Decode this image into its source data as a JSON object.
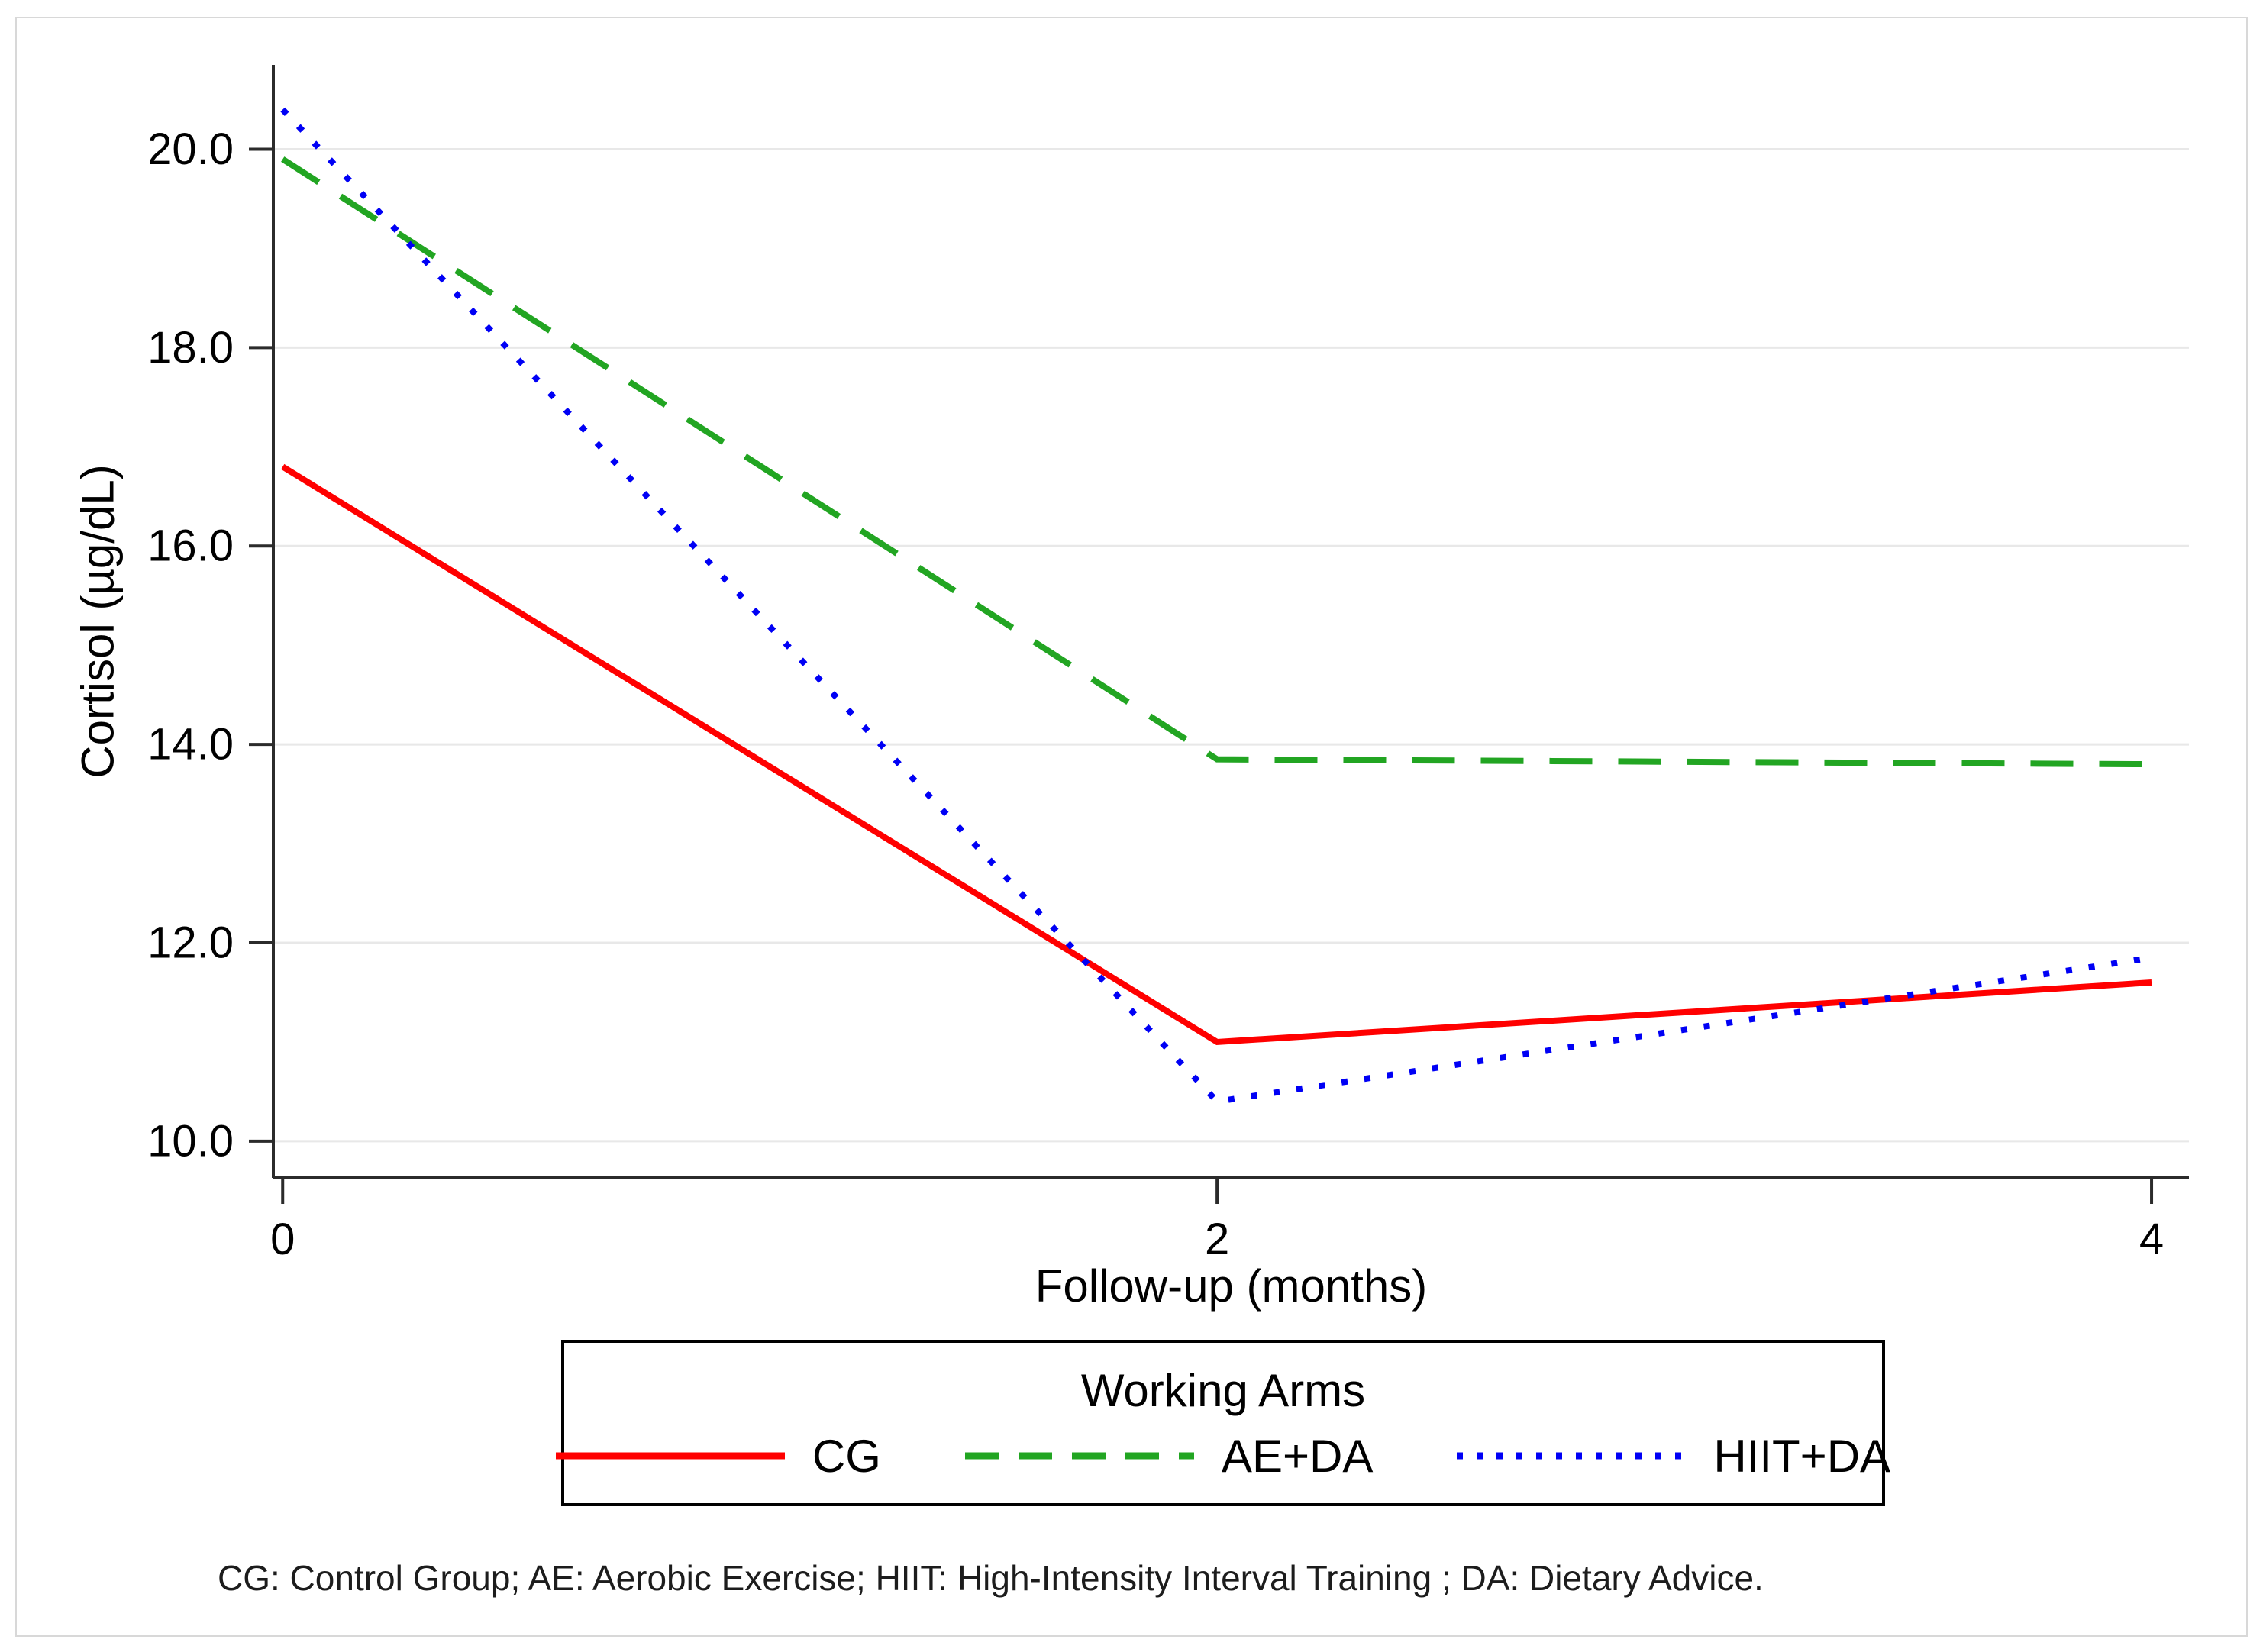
{
  "chart_data": {
    "type": "line",
    "x": [
      0,
      2,
      4
    ],
    "xtick_labels": [
      "0",
      "2",
      "4"
    ],
    "yticks": [
      10.0,
      12.0,
      14.0,
      16.0,
      18.0,
      20.0
    ],
    "ytick_labels": [
      "10.0",
      "12.0",
      "14.0",
      "16.0",
      "18.0",
      "20.0"
    ],
    "xlabel": "Follow-up (months)",
    "ylabel": "Cortisol (µg/dL)",
    "xlim": [
      -0.02,
      4.08
    ],
    "ylim": [
      9.63,
      20.85
    ],
    "grid": "horizontal-only",
    "gridline_color": "#e8e8e8",
    "axis_color": "#2b2b2b",
    "legend_title": "Working Arms",
    "legend_position": "bottom-center",
    "series": [
      {
        "name": "CG",
        "color": "#ff0000",
        "line_style": "solid",
        "values": [
          16.8,
          11.0,
          11.6
        ]
      },
      {
        "name": "AE+DA",
        "color": "#22a522",
        "line_style": "dashed",
        "values": [
          19.9,
          13.85,
          13.8
        ]
      },
      {
        "name": "HIIT+DA",
        "color": "#0000f5",
        "line_style": "dotted",
        "values": [
          20.4,
          10.4,
          11.85
        ]
      }
    ],
    "footnote": "CG: Control Group; AE: Aerobic Exercise; HIIT: High-Intensity Interval Training ; DA: Dietary Advice."
  }
}
